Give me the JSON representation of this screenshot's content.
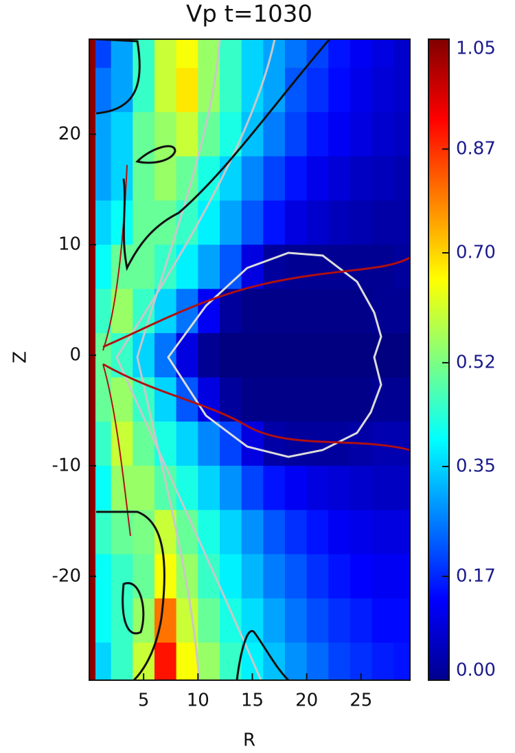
{
  "chart_data": {
    "type": "heatmap",
    "title": "Vp t=1030",
    "x_label": "R",
    "y_label": "Z",
    "x": [
      1,
      3,
      5,
      7,
      9,
      11,
      13,
      15,
      17,
      19,
      21,
      23,
      25,
      27,
      29
    ],
    "y": [
      28,
      24,
      20,
      16,
      12,
      8,
      4,
      0,
      -4,
      -8,
      -12,
      -16,
      -20,
      -24,
      -28
    ],
    "values": [
      [
        0.2,
        0.3,
        0.45,
        0.6,
        0.65,
        0.55,
        0.45,
        0.35,
        0.3,
        0.25,
        0.2,
        0.15,
        0.12,
        0.1,
        0.08
      ],
      [
        0.25,
        0.3,
        0.45,
        0.6,
        0.68,
        0.55,
        0.45,
        0.35,
        0.3,
        0.22,
        0.18,
        0.14,
        0.11,
        0.09,
        0.08
      ],
      [
        0.3,
        0.35,
        0.5,
        0.55,
        0.6,
        0.5,
        0.42,
        0.33,
        0.26,
        0.2,
        0.15,
        0.12,
        0.1,
        0.08,
        0.07
      ],
      [
        0.3,
        0.35,
        0.5,
        0.55,
        0.5,
        0.42,
        0.35,
        0.27,
        0.2,
        0.15,
        0.11,
        0.09,
        0.07,
        0.06,
        0.05
      ],
      [
        0.35,
        0.4,
        0.5,
        0.5,
        0.45,
        0.38,
        0.3,
        0.22,
        0.15,
        0.1,
        0.08,
        0.06,
        0.05,
        0.04,
        0.04
      ],
      [
        0.4,
        0.5,
        0.5,
        0.45,
        0.38,
        0.3,
        0.22,
        0.1,
        0.03,
        0.02,
        0.02,
        0.02,
        0.02,
        0.02,
        0.03
      ],
      [
        0.45,
        0.55,
        0.45,
        0.35,
        0.25,
        0.12,
        0.03,
        0.01,
        0.01,
        0.01,
        0.01,
        0.01,
        0.01,
        0.02,
        0.02
      ],
      [
        0.5,
        0.45,
        0.35,
        0.25,
        0.1,
        0.02,
        0,
        0,
        0,
        0,
        0,
        0,
        0,
        0,
        0
      ],
      [
        0.5,
        0.55,
        0.45,
        0.35,
        0.22,
        0.1,
        0.03,
        0.01,
        0.01,
        0.01,
        0.01,
        0.01,
        0.01,
        0.02,
        0.02
      ],
      [
        0.45,
        0.6,
        0.5,
        0.42,
        0.35,
        0.27,
        0.2,
        0.1,
        0.04,
        0.03,
        0.03,
        0.03,
        0.04,
        0.05,
        0.05
      ],
      [
        0.4,
        0.55,
        0.55,
        0.48,
        0.42,
        0.35,
        0.28,
        0.2,
        0.15,
        0.12,
        0.1,
        0.09,
        0.08,
        0.07,
        0.07
      ],
      [
        0.45,
        0.5,
        0.52,
        0.6,
        0.5,
        0.42,
        0.35,
        0.28,
        0.22,
        0.18,
        0.15,
        0.12,
        0.11,
        0.1,
        0.1
      ],
      [
        0.4,
        0.45,
        0.5,
        0.65,
        0.55,
        0.45,
        0.38,
        0.32,
        0.26,
        0.22,
        0.18,
        0.15,
        0.13,
        0.12,
        0.12
      ],
      [
        0.4,
        0.45,
        0.55,
        0.8,
        0.6,
        0.5,
        0.42,
        0.36,
        0.3,
        0.25,
        0.21,
        0.18,
        0.16,
        0.14,
        0.14
      ],
      [
        0.35,
        0.45,
        0.6,
        0.9,
        0.65,
        0.55,
        0.45,
        0.38,
        0.33,
        0.28,
        0.24,
        0.2,
        0.18,
        0.16,
        0.15
      ]
    ],
    "xlim": [
      0,
      29.5
    ],
    "ylim": [
      -29.4,
      28.6
    ],
    "xticks": [
      5,
      10,
      15,
      20,
      25
    ],
    "yticks": [
      -20,
      -10,
      0,
      10,
      20
    ],
    "colormap": "jet",
    "colorbar": {
      "lim": [
        0,
        1.05
      ],
      "ticks": [
        {
          "value": 0,
          "label": "0.00"
        },
        0.17,
        0.35,
        0.52,
        {
          "value": 0.7,
          "label": "0.70"
        },
        0.87,
        1.05
      ]
    }
  }
}
